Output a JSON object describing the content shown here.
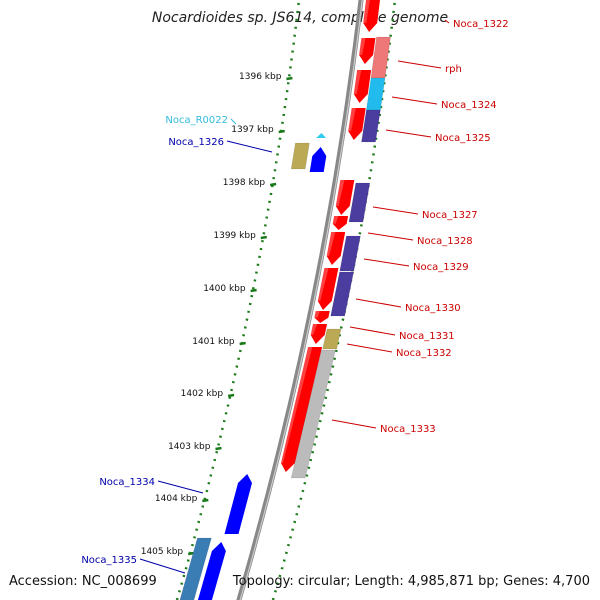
{
  "title": "Nocardioides sp. JS614, complete genome",
  "footer": {
    "accession": "Accession: NC_008699",
    "topology": "Topology: circular; Length: 4,985,871 bp; Genes: 4,700"
  },
  "ticks": [
    "1396 kbp",
    "1397 kbp",
    "1398 kbp",
    "1399 kbp",
    "1400 kbp",
    "1401 kbp",
    "1402 kbp",
    "1403 kbp",
    "1404 kbp",
    "1405 kbp"
  ],
  "colors": {
    "cds_forward": "#ff0000",
    "cds_reverse_blue": "#0000ff",
    "label_forward": "#cc0000",
    "label_reverse": "#0000aa",
    "label_rna": "#33bbdd",
    "backbone": "#888888",
    "tick": "#1a7a1a",
    "cog_purple": "#4b3ca0",
    "cog_salmon": "#ee7777",
    "cog_cyan": "#22bbee",
    "cog_olive": "#bba955",
    "cog_grey": "#bbbbbb"
  },
  "genes": [
    {
      "name": "Noca_1322",
      "strand": "forward"
    },
    {
      "name": "rph",
      "strand": "forward"
    },
    {
      "name": "Noca_1324",
      "strand": "forward"
    },
    {
      "name": "Noca_1325",
      "strand": "forward"
    },
    {
      "name": "Noca_R0022",
      "strand": "reverse",
      "type": "tRNA"
    },
    {
      "name": "Noca_1326",
      "strand": "reverse"
    },
    {
      "name": "Noca_1327",
      "strand": "forward"
    },
    {
      "name": "Noca_1328",
      "strand": "forward"
    },
    {
      "name": "Noca_1329",
      "strand": "forward"
    },
    {
      "name": "Noca_1330",
      "strand": "forward"
    },
    {
      "name": "Noca_1331",
      "strand": "forward"
    },
    {
      "name": "Noca_1332",
      "strand": "forward"
    },
    {
      "name": "Noca_1333",
      "strand": "forward"
    },
    {
      "name": "Noca_1334",
      "strand": "reverse"
    },
    {
      "name": "Noca_1335",
      "strand": "reverse"
    }
  ]
}
